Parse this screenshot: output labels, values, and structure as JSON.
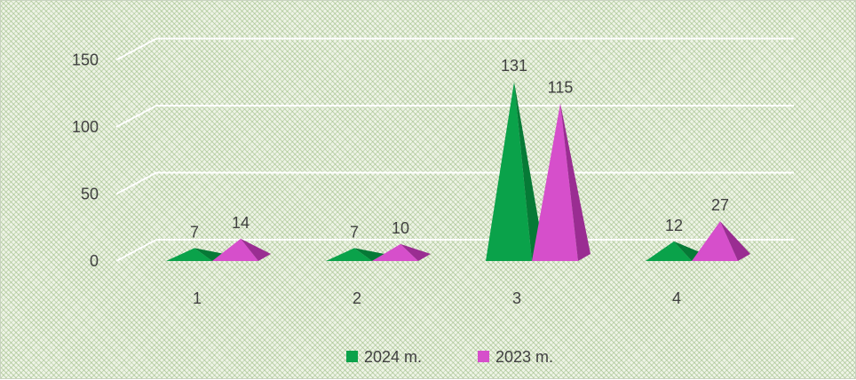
{
  "chart_data": {
    "type": "bar",
    "subtype": "3d-pyramid",
    "title": "",
    "xlabel": "",
    "ylabel": "",
    "categories": [
      "1",
      "2",
      "3",
      "4"
    ],
    "series": [
      {
        "name": "2024 m.",
        "values": [
          7,
          7,
          131,
          12
        ],
        "color": "#0aa24a",
        "dark_color": "#067a36"
      },
      {
        "name": "2023 m.",
        "values": [
          14,
          10,
          115,
          27
        ],
        "color": "#d64fcb",
        "dark_color": "#9a2d92"
      }
    ],
    "y_ticks": [
      0,
      50,
      100,
      150
    ],
    "ylim": [
      0,
      150
    ],
    "grid": true,
    "legend_position": "bottom",
    "data_labels": true
  },
  "colors": {
    "background": "#eef3e6",
    "gridline": "#ffffff",
    "text": "#404040"
  }
}
